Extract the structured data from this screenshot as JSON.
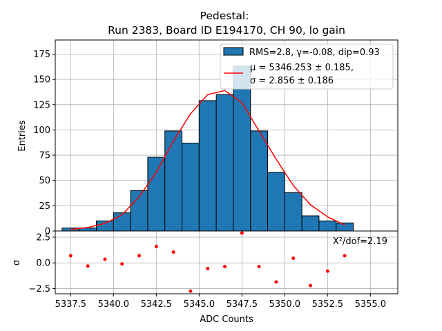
{
  "chart_data": {
    "type": "bar",
    "title_line1": "Pedestal:",
    "title_line2": "Run 2383, Board ID E194170, CH 90, lo gain",
    "xlabel": "ADC Counts",
    "ylabel_top": "Entries",
    "ylabel_bottom": "σ",
    "xlim": [
      5336.6,
      5356.6
    ],
    "ylim_top": [
      0,
      189
    ],
    "ylim_bottom": [
      -3.0,
      3.1
    ],
    "x_ticks": [
      5337.5,
      5340.0,
      5342.5,
      5345.0,
      5347.5,
      5350.0,
      5352.5,
      5355.0
    ],
    "x_tick_labels": [
      "5337.5",
      "5340.0",
      "5342.5",
      "5345.0",
      "5347.5",
      "5350.0",
      "5352.5",
      "5355.0"
    ],
    "y_ticks_top": [
      0,
      25,
      50,
      75,
      100,
      125,
      150,
      175
    ],
    "y_tick_labels_top": [
      "0",
      "25",
      "50",
      "75",
      "100",
      "125",
      "150",
      "175"
    ],
    "y_ticks_bottom": [
      -2.5,
      0.0,
      2.5
    ],
    "y_tick_labels_bottom": [
      "−2.5",
      "0.0",
      "2.5"
    ],
    "bin_edges": [
      5337.0,
      5338.0,
      5339.0,
      5340.0,
      5341.0,
      5342.0,
      5343.0,
      5344.0,
      5345.0,
      5346.0,
      5347.0,
      5348.0,
      5349.0,
      5350.0,
      5351.0,
      5352.0,
      5353.0,
      5354.0
    ],
    "counts": [
      3,
      3,
      10,
      18,
      40,
      73,
      99,
      87,
      129,
      135,
      163,
      99,
      58,
      38,
      15,
      10,
      8
    ],
    "fit_curve": {
      "x": [
        5337.5,
        5338.5,
        5339.5,
        5340.5,
        5341.5,
        5342.5,
        5343.5,
        5344.5,
        5345.5,
        5346.5,
        5347.5,
        5348.5,
        5349.5,
        5350.5,
        5351.5,
        5352.5,
        5353.5
      ],
      "y": [
        1.5,
        3.5,
        7.5,
        16,
        34,
        58,
        89,
        116,
        135,
        139,
        127,
        99,
        71,
        45,
        26,
        14,
        6
      ]
    },
    "residuals": {
      "x": [
        5337.5,
        5338.5,
        5339.5,
        5340.5,
        5341.5,
        5342.5,
        5343.5,
        5344.5,
        5345.5,
        5346.5,
        5347.5,
        5348.5,
        5349.5,
        5350.5,
        5351.5,
        5352.5,
        5353.5
      ],
      "y": [
        0.7,
        -0.3,
        0.35,
        -0.1,
        0.7,
        1.6,
        1.05,
        -2.75,
        -0.55,
        -0.35,
        2.9,
        -0.35,
        -1.85,
        0.45,
        -2.2,
        -0.8,
        0.7
      ]
    },
    "legend": {
      "position": "upper right",
      "hist_label": "RMS=2.8, γ=-0.08, dip=0.93",
      "fit_label_mu": "μ = 5346.253 ± 0.185,",
      "fit_label_sigma": "σ = 2.856 ± 0.186"
    },
    "chi2_label": "X²/dof=2.19",
    "grid": true,
    "colors": {
      "bar": "#1f77b4",
      "fit": "#ff0000",
      "residual": "#ff0000",
      "grid": "#b0b0b0"
    }
  }
}
